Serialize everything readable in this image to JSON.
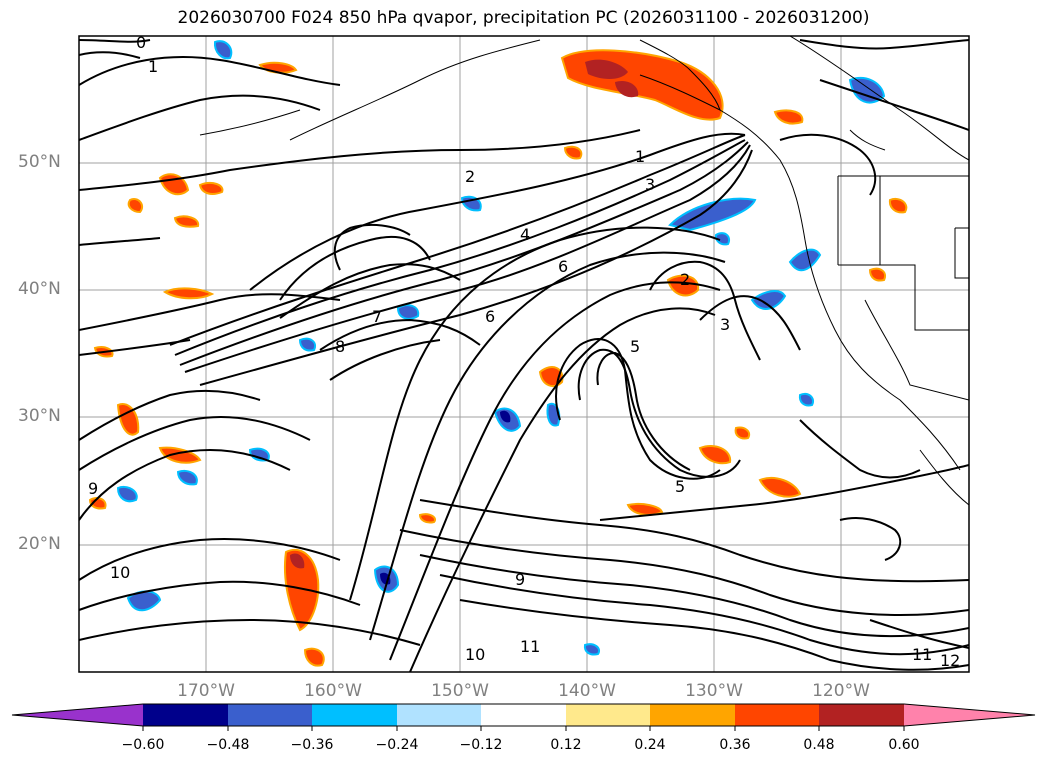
{
  "title": "2026030700 F024 850 hPa qvapor, precipitation PC (2026031100 - 2026031200)",
  "lat_labels": [
    "50°N",
    "40°N",
    "30°N",
    "20°N"
  ],
  "lon_labels": [
    "170°W",
    "160°W",
    "150°W",
    "140°W",
    "130°W",
    "120°W"
  ],
  "colorbar": {
    "colors": [
      "#9932cc",
      "#00008b",
      "#3a5fcd",
      "#00bfff",
      "#b0e2ff",
      "#ffffff",
      "#ffe98c",
      "#ffa500",
      "#ff4500",
      "#b22222",
      "#ff82ab"
    ],
    "tick_labels": [
      "−0.60",
      "−0.48",
      "−0.36",
      "−0.24",
      "−0.12",
      "0.12",
      "0.24",
      "0.36",
      "0.48",
      "0.60"
    ]
  },
  "contour_labels": [
    "0",
    "1",
    "2",
    "3",
    "4",
    "5",
    "6",
    "7",
    "8",
    "9",
    "10",
    "11",
    "12",
    "1",
    "2",
    "5",
    "6",
    "3",
    "9",
    "10",
    "11"
  ],
  "colors": {
    "line": "#000000",
    "grid": "#a0a0a0",
    "axis_text": "#808080"
  }
}
